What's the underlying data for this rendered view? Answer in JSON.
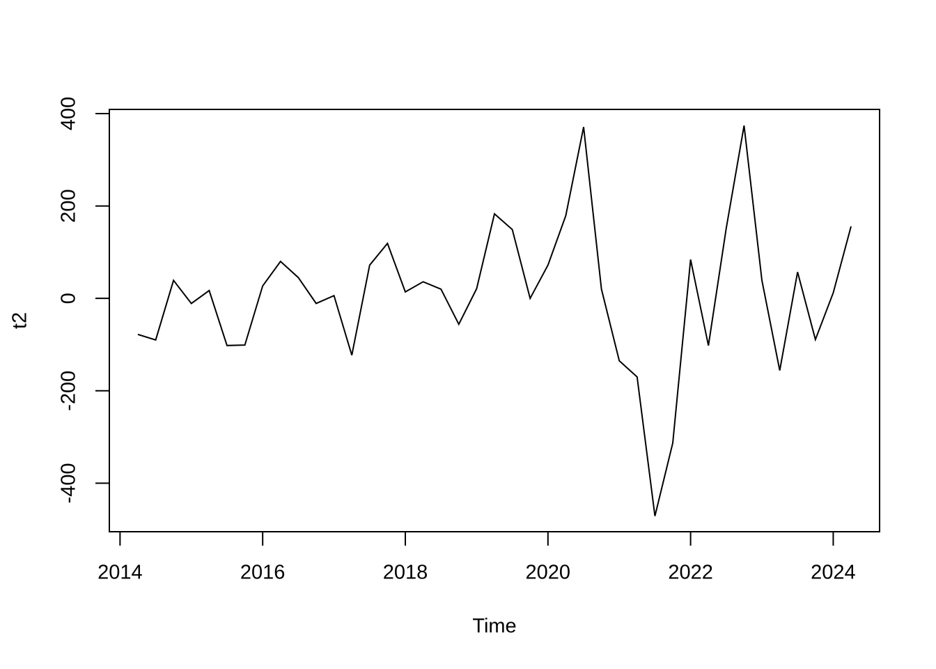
{
  "chart_data": {
    "type": "line",
    "x_label": "Time",
    "y_label": "t2",
    "x": [
      2014.25,
      2014.5,
      2014.75,
      2015,
      2015.25,
      2015.5,
      2015.75,
      2016,
      2016.25,
      2016.5,
      2016.75,
      2017,
      2017.25,
      2017.5,
      2017.75,
      2018,
      2018.25,
      2018.5,
      2018.75,
      2019,
      2019.25,
      2019.5,
      2019.75,
      2020,
      2020.25,
      2020.5,
      2020.75,
      2021,
      2021.25,
      2021.5,
      2021.75,
      2022,
      2022.25,
      2022.5,
      2022.75,
      2023,
      2023.25,
      2023.5,
      2023.75,
      2024,
      2024.25
    ],
    "series": [
      {
        "color": "#000000",
        "values": [
          -78,
          -90,
          39,
          -11,
          17,
          -102,
          -101,
          27,
          80,
          45,
          -11,
          6,
          -123,
          72,
          119,
          14,
          36,
          20,
          -56,
          21,
          183,
          149,
          0,
          72,
          179,
          371,
          20,
          -135,
          -170,
          -471,
          -313,
          84,
          -102,
          152,
          374,
          39,
          -156,
          57,
          -89,
          12,
          156
        ]
      }
    ],
    "xlim": [
      2013.85,
      2024.65
    ],
    "ylim": [
      -505,
      409
    ],
    "xticks": [
      2014,
      2016,
      2018,
      2020,
      2022,
      2024
    ],
    "yticks": [
      -400,
      -200,
      0,
      200,
      400
    ]
  }
}
